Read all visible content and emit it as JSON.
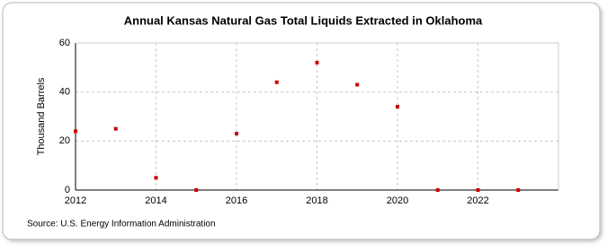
{
  "chart_data": {
    "type": "scatter",
    "title": "Annual Kansas Natural Gas Total Liquids Extracted in Oklahoma",
    "y_label": "Thousand Barrels",
    "source": "Source: U.S. Energy Information Administration",
    "x": [
      2012,
      2013,
      2014,
      2015,
      2016,
      2017,
      2018,
      2019,
      2020,
      2021,
      2022,
      2023
    ],
    "series": [
      {
        "name": "Kansas",
        "color": "#cc0000",
        "values": [
          24,
          25,
          5,
          0,
          23,
          44,
          52,
          43,
          34,
          0,
          0,
          0
        ]
      }
    ],
    "xlim": [
      2012,
      2024
    ],
    "xticks": [
      2012,
      2014,
      2016,
      2018,
      2020,
      2022
    ],
    "ylim": [
      0,
      60
    ],
    "yticks": [
      0,
      20,
      40,
      60
    ],
    "grid": true
  }
}
